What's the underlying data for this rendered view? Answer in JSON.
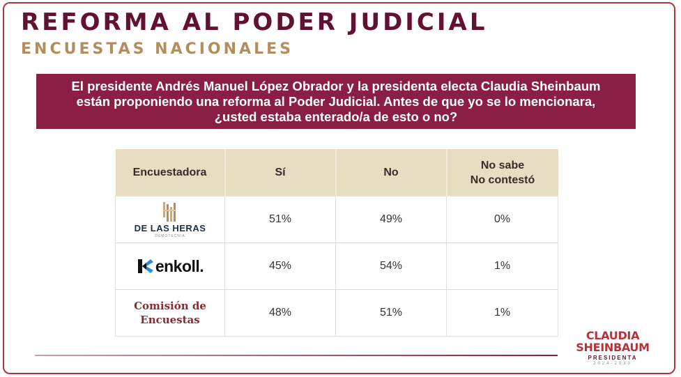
{
  "header": {
    "title": "REFORMA AL PODER JUDICIAL",
    "subtitle": "ENCUESTAS NACIONALES"
  },
  "question": {
    "line1": "El presidente Andrés Manuel López Obrador y la presidenta electa Claudia Sheinbaum",
    "line2": "están proponiendo una reforma al Poder Judicial. Antes de que yo se lo mencionara,",
    "line3": "¿usted estaba enterado/a de esto o no?"
  },
  "table": {
    "columns": {
      "pollster": "Encuestadora",
      "yes": "Sí",
      "no": "No",
      "dk_line1": "No sabe",
      "dk_line2": "No contestó"
    },
    "rows": [
      {
        "pollster": {
          "name": "DE LAS HERAS",
          "sub": "DEMOTECNIA",
          "logo": "de-las-heras-logo"
        },
        "yes": "51%",
        "no": "49%",
        "dk": "0%"
      },
      {
        "pollster": {
          "name": "enkoll.",
          "logo": "enkoll-logo"
        },
        "yes": "45%",
        "no": "54%",
        "dk": "1%"
      },
      {
        "pollster": {
          "name_line1": "Comisión de",
          "name_line2": "Encuestas"
        },
        "yes": "48%",
        "no": "51%",
        "dk": "1%"
      }
    ]
  },
  "brand": {
    "line1": "CLAUDIA",
    "line2": "SHEINBAUM",
    "line3": "PRESIDENTA",
    "line4": "2024-2030"
  },
  "colors": {
    "title": "#611232",
    "subtitle": "#b38e5d",
    "question_bg": "#8b1e45",
    "table_header_bg": "#e8dcc2",
    "accent": "#b5333a"
  }
}
